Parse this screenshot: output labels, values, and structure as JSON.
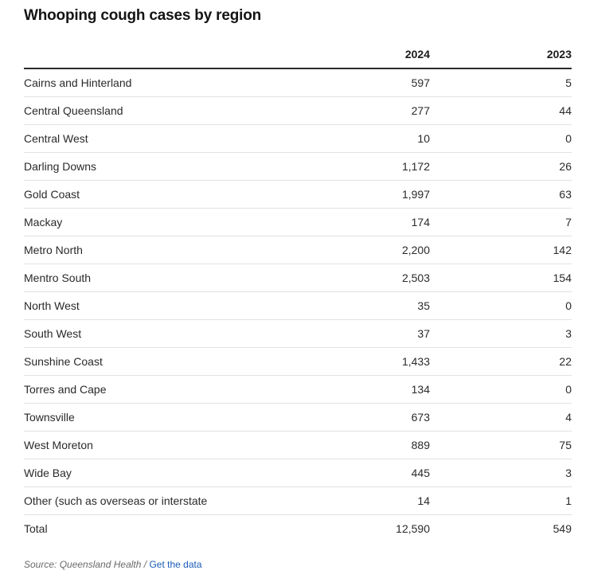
{
  "title": "Whooping cough cases by region",
  "source": {
    "label": "Source: Queensland Health",
    "separator": " / ",
    "link_text": "Get the data"
  },
  "chart_data": {
    "type": "table",
    "title": "Whooping cough cases by region",
    "columns": [
      "",
      "2024",
      "2023"
    ],
    "rows": [
      {
        "region": "Cairns and Hinterland",
        "y2024": "597",
        "y2023": "5"
      },
      {
        "region": "Central Queensland",
        "y2024": "277",
        "y2023": "44"
      },
      {
        "region": "Central West",
        "y2024": "10",
        "y2023": "0"
      },
      {
        "region": "Darling Downs",
        "y2024": "1,172",
        "y2023": "26"
      },
      {
        "region": "Gold Coast",
        "y2024": "1,997",
        "y2023": "63"
      },
      {
        "region": "Mackay",
        "y2024": "174",
        "y2023": "7"
      },
      {
        "region": "Metro North",
        "y2024": "2,200",
        "y2023": "142"
      },
      {
        "region": "Mentro South",
        "y2024": "2,503",
        "y2023": "154"
      },
      {
        "region": "North West",
        "y2024": "35",
        "y2023": "0"
      },
      {
        "region": "South West",
        "y2024": "37",
        "y2023": "3"
      },
      {
        "region": "Sunshine Coast",
        "y2024": "1,433",
        "y2023": "22"
      },
      {
        "region": "Torres and Cape",
        "y2024": "134",
        "y2023": "0"
      },
      {
        "region": "Townsville",
        "y2024": "673",
        "y2023": "4"
      },
      {
        "region": "West Moreton",
        "y2024": "889",
        "y2023": "75"
      },
      {
        "region": "Wide Bay",
        "y2024": "445",
        "y2023": "3"
      },
      {
        "region": "Other (such as overseas or interstate",
        "y2024": "14",
        "y2023": "1"
      },
      {
        "region": "Total",
        "y2024": "12,590",
        "y2023": "549"
      }
    ]
  }
}
